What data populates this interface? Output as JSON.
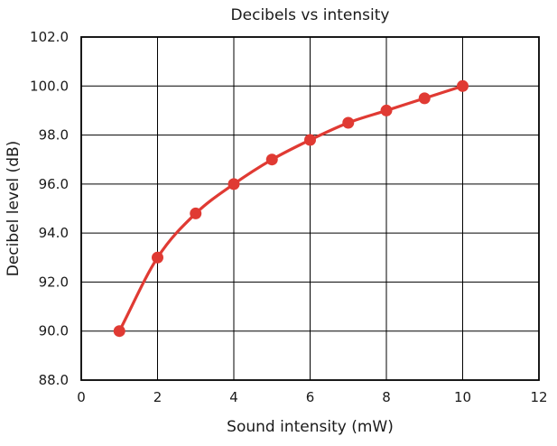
{
  "chart_data": {
    "type": "line",
    "title": "Decibels vs intensity",
    "xlabel": "Sound intensity (mW)",
    "ylabel": "Decibel level (dB)",
    "xlim": [
      0,
      12
    ],
    "ylim": [
      88.0,
      102.0
    ],
    "xticks": [
      "0",
      "2",
      "4",
      "6",
      "8",
      "10",
      "12"
    ],
    "yticks": [
      "88.0",
      "90.0",
      "92.0",
      "94.0",
      "96.0",
      "98.0",
      "100.0",
      "102.0"
    ],
    "grid": true,
    "smooth": true,
    "line_color": "#e03a33",
    "marker_color": "#e03a33",
    "series": [
      {
        "x": [
          1,
          2,
          3,
          4,
          5,
          6,
          7,
          8,
          9,
          10
        ],
        "y": [
          90.0,
          93.0,
          94.8,
          96.0,
          97.0,
          97.8,
          98.5,
          99.0,
          99.5,
          100.0
        ]
      }
    ]
  }
}
